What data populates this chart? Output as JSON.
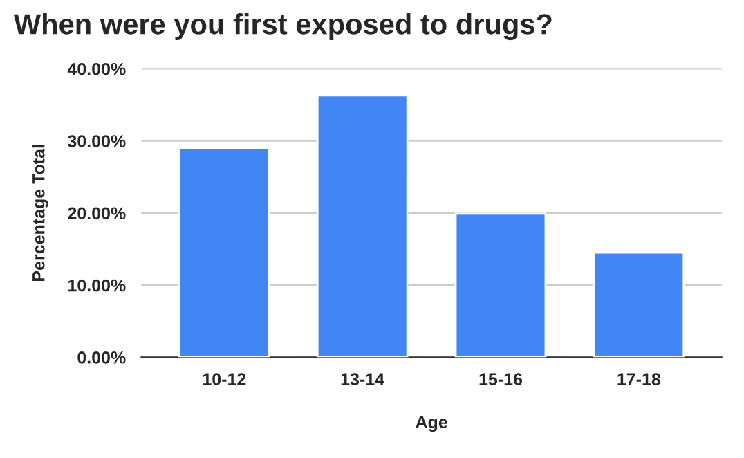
{
  "chart_data": {
    "type": "bar",
    "title": "When were you first exposed to drugs?",
    "xlabel": "Age",
    "ylabel": "Percentage Total",
    "categories": [
      "10-12",
      "13-14",
      "15-16",
      "17-18"
    ],
    "values": [
      29.0,
      36.3,
      19.9,
      14.5
    ],
    "color": "#4285f4",
    "ylim": [
      0,
      40
    ],
    "yticks": [
      {
        "value": 0,
        "label": "0.00%"
      },
      {
        "value": 10,
        "label": "10.00%"
      },
      {
        "value": 20,
        "label": "20.00%"
      },
      {
        "value": 30,
        "label": "30.00%"
      },
      {
        "value": 40,
        "label": "40.00%"
      }
    ],
    "grid": "y",
    "legend": false
  }
}
